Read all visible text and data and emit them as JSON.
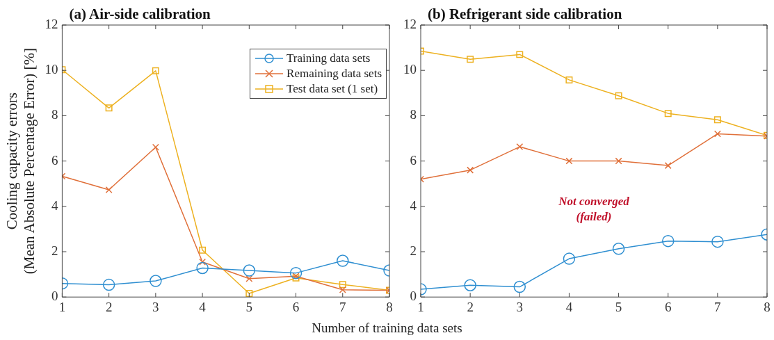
{
  "chart_data": [
    {
      "type": "line",
      "title": "(a) Air-side calibration",
      "xlabel": "Number of training data sets",
      "ylabel": "Cooling capacity errors\n(Mean Absolute Percentage Error) [%]",
      "x": [
        1,
        2,
        3,
        4,
        5,
        6,
        7,
        8
      ],
      "xlim": [
        1,
        8
      ],
      "xticks": [
        1,
        2,
        3,
        4,
        5,
        6,
        7,
        8
      ],
      "ylim": [
        0,
        12
      ],
      "yticks": [
        0,
        2,
        4,
        6,
        8,
        10,
        12
      ],
      "grid": false,
      "legend": "top right",
      "series": [
        {
          "name": "Training data sets",
          "color": "#2f8fd1",
          "marker": "circle",
          "values": [
            0.6,
            0.54,
            0.71,
            1.28,
            1.17,
            1.06,
            1.6,
            1.17
          ]
        },
        {
          "name": "Remaining data sets",
          "color": "#e0703a",
          "marker": "cross",
          "values": [
            5.33,
            4.73,
            6.61,
            1.55,
            0.81,
            0.92,
            0.32,
            0.3
          ]
        },
        {
          "name": "Test data set (1 set)",
          "color": "#edb120",
          "marker": "square",
          "values": [
            10.03,
            8.34,
            9.98,
            2.07,
            0.16,
            0.84,
            0.55,
            0.3
          ]
        }
      ]
    },
    {
      "type": "line",
      "title": "(b) Refrigerant side calibration",
      "x": [
        1,
        2,
        3,
        4,
        5,
        6,
        7,
        8
      ],
      "xlim": [
        1,
        8
      ],
      "xticks": [
        1,
        2,
        3,
        4,
        5,
        6,
        7,
        8
      ],
      "ylim": [
        0,
        12
      ],
      "yticks": [
        0,
        2,
        4,
        6,
        8,
        10,
        12
      ],
      "grid": false,
      "annotations": [
        "Not converged\n(failed)"
      ],
      "series": [
        {
          "color": "#2f8fd1",
          "marker": "circle",
          "values": [
            0.34,
            0.52,
            0.45,
            1.69,
            2.13,
            2.47,
            2.44,
            2.76
          ]
        },
        {
          "color": "#e0703a",
          "marker": "cross",
          "values": [
            5.2,
            5.6,
            6.63,
            6.0,
            6.0,
            5.8,
            7.2,
            7.1
          ]
        },
        {
          "color": "#edb120",
          "marker": "square",
          "values": [
            10.85,
            10.49,
            10.7,
            9.58,
            8.88,
            8.1,
            7.82,
            7.13
          ]
        }
      ]
    }
  ]
}
